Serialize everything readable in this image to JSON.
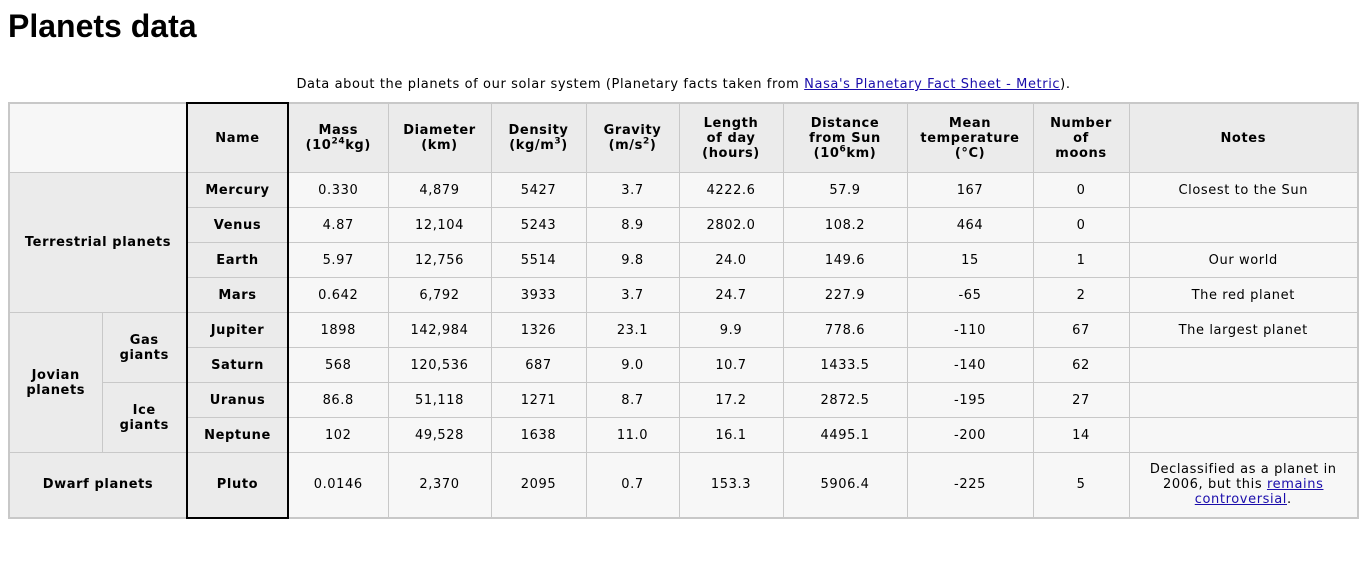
{
  "page_title": "Planets data",
  "caption": {
    "prefix": "Data about the planets of our solar system (Planetary facts taken from ",
    "link": "Nasa's Planetary Fact Sheet - Metric",
    "suffix": ")."
  },
  "headers": {
    "name": "Name",
    "mass": "Mass",
    "mass_unit_pre": "(10",
    "mass_unit_sup": "24",
    "mass_unit_post": "kg)",
    "diameter": "Diameter",
    "diameter_unit": "(km)",
    "density": "Density",
    "density_unit_pre": "(kg/m",
    "density_unit_sup": "3",
    "density_unit_post": ")",
    "gravity": "Gravity",
    "gravity_unit_pre": "(m/s",
    "gravity_unit_sup": "2",
    "gravity_unit_post": ")",
    "day_1": "Length",
    "day_2": "of day",
    "day_3": "(hours)",
    "dist_1": "Distance",
    "dist_2": "from Sun",
    "dist_unit_pre": "(10",
    "dist_unit_sup": "6",
    "dist_unit_post": "km)",
    "temp_1": "Mean",
    "temp_2": "temperature",
    "temp_3": "(°C)",
    "moons_1": "Number",
    "moons_2": "of",
    "moons_3": "moons",
    "notes": "Notes"
  },
  "groups": {
    "terrestrial": "Terrestrial planets",
    "jovian_1": "Jovian",
    "jovian_2": "planets",
    "gas_1": "Gas",
    "gas_2": "giants",
    "ice_1": "Ice",
    "ice_2": "giants",
    "dwarf": "Dwarf planets"
  },
  "planets": [
    {
      "name": "Mercury",
      "mass": "0.330",
      "diameter": "4,879",
      "density": "5427",
      "gravity": "3.7",
      "day": "4222.6",
      "distance": "57.9",
      "temp": "167",
      "moons": "0",
      "notes": "Closest to the Sun"
    },
    {
      "name": "Venus",
      "mass": "4.87",
      "diameter": "12,104",
      "density": "5243",
      "gravity": "8.9",
      "day": "2802.0",
      "distance": "108.2",
      "temp": "464",
      "moons": "0",
      "notes": ""
    },
    {
      "name": "Earth",
      "mass": "5.97",
      "diameter": "12,756",
      "density": "5514",
      "gravity": "9.8",
      "day": "24.0",
      "distance": "149.6",
      "temp": "15",
      "moons": "1",
      "notes": "Our world"
    },
    {
      "name": "Mars",
      "mass": "0.642",
      "diameter": "6,792",
      "density": "3933",
      "gravity": "3.7",
      "day": "24.7",
      "distance": "227.9",
      "temp": "-65",
      "moons": "2",
      "notes": "The red planet"
    },
    {
      "name": "Jupiter",
      "mass": "1898",
      "diameter": "142,984",
      "density": "1326",
      "gravity": "23.1",
      "day": "9.9",
      "distance": "778.6",
      "temp": "-110",
      "moons": "67",
      "notes": "The largest planet"
    },
    {
      "name": "Saturn",
      "mass": "568",
      "diameter": "120,536",
      "density": "687",
      "gravity": "9.0",
      "day": "10.7",
      "distance": "1433.5",
      "temp": "-140",
      "moons": "62",
      "notes": ""
    },
    {
      "name": "Uranus",
      "mass": "86.8",
      "diameter": "51,118",
      "density": "1271",
      "gravity": "8.7",
      "day": "17.2",
      "distance": "2872.5",
      "temp": "-195",
      "moons": "27",
      "notes": ""
    },
    {
      "name": "Neptune",
      "mass": "102",
      "diameter": "49,528",
      "density": "1638",
      "gravity": "11.0",
      "day": "16.1",
      "distance": "4495.1",
      "temp": "-200",
      "moons": "14",
      "notes": ""
    },
    {
      "name": "Pluto",
      "mass": "0.0146",
      "diameter": "2,370",
      "density": "2095",
      "gravity": "0.7",
      "day": "153.3",
      "distance": "5906.4",
      "temp": "-225",
      "moons": "5",
      "notes": ""
    }
  ],
  "pluto_note": {
    "text": "Declassified as a planet in 2006, but this ",
    "link": "remains controversial",
    "suffix": "."
  }
}
